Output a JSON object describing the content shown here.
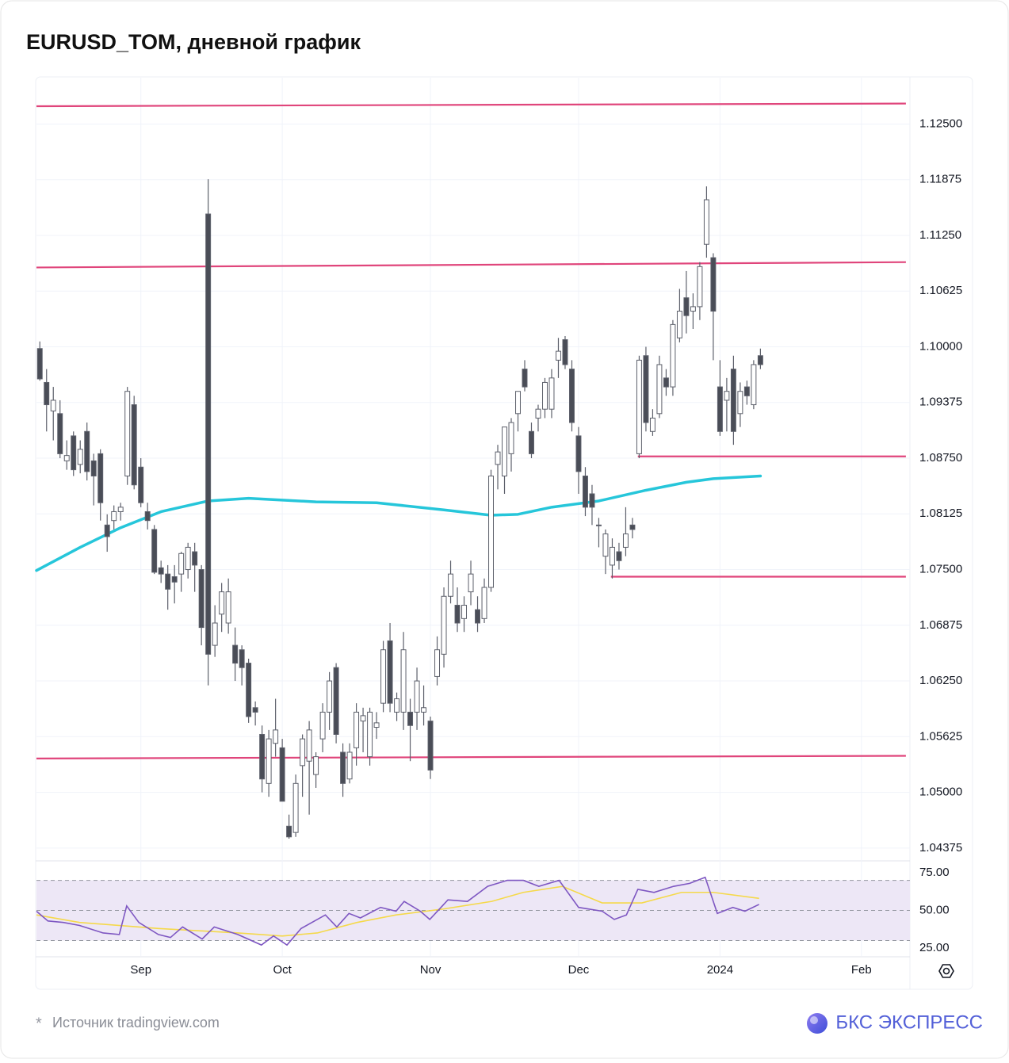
{
  "chart_data": {
    "type": "candlestick",
    "title": "EURUSD_TOM, дневной график",
    "up_color": "#ffffff",
    "down_color": "#4a4d57",
    "wick_color": "#5d606b",
    "grid": true,
    "open": [
      1.0998,
      1.096,
      1.0928,
      1.0925,
      1.0872,
      1.09,
      1.0868,
      1.0905,
      1.0872,
      1.088,
      1.08,
      1.0805,
      1.0815,
      1.0855,
      1.0935,
      1.0865,
      1.0815,
      1.0795,
      1.0752,
      1.0745,
      1.0742,
      1.0745,
      1.075,
      1.077,
      1.075,
      1.1149,
      1.0665,
      1.07,
      1.069,
      1.0665,
      1.066,
      1.0645,
      1.0595,
      1.0565,
      1.051,
      1.0555,
      1.055,
      1.0462,
      1.0455,
      1.053,
      1.0535,
      1.052,
      1.056,
      1.059,
      1.064,
      1.0545,
      1.0515,
      1.055,
      1.058,
      1.054,
      1.0573,
      1.06,
      1.067,
      1.059,
      1.059,
      1.059,
      1.059,
      1.059,
      1.058,
      1.063,
      1.0655,
      1.072,
      1.071,
      1.0695,
      1.0725,
      1.0705,
      1.0695,
      1.073,
      1.0868,
      1.0855,
      1.088,
      1.0925,
      1.0975,
      1.0905,
      1.092,
      1.093,
      1.093,
      1.0985,
      1.1008,
      1.0975,
      1.09,
      1.0855,
      1.0835,
      1.08,
      1.0765,
      1.0755,
      1.077,
      1.0775,
      1.08,
      1.088,
      1.099,
      1.0905,
      1.0925,
      1.0965,
      1.0955,
      1.101,
      1.1055,
      1.104,
      1.1045,
      1.1115,
      1.11,
      1.0955,
      1.094,
      1.0975,
      1.0925,
      1.0955,
      1.0935,
      1.099
    ],
    "high": [
      1.1006,
      1.0975,
      1.0955,
      1.094,
      1.0895,
      1.0905,
      1.0895,
      1.0915,
      1.088,
      1.0885,
      1.0812,
      1.0822,
      1.0825,
      1.0955,
      1.0945,
      1.0875,
      1.0825,
      1.08,
      1.076,
      1.0755,
      1.0755,
      1.077,
      1.078,
      1.078,
      1.0755,
      1.1188,
      1.071,
      1.0735,
      1.074,
      1.0685,
      1.0665,
      1.065,
      1.0602,
      1.0575,
      1.057,
      1.0605,
      1.056,
      1.0475,
      1.052,
      1.0565,
      1.058,
      1.0545,
      1.06,
      1.0635,
      1.0645,
      1.0555,
      1.0555,
      1.06,
      1.0595,
      1.0595,
      1.059,
      1.067,
      1.069,
      1.0612,
      1.068,
      1.0605,
      1.064,
      1.062,
      1.0585,
      1.0675,
      1.073,
      1.076,
      1.073,
      1.072,
      1.076,
      1.072,
      1.074,
      1.0862,
      1.089,
      1.091,
      1.092,
      1.095,
      1.0985,
      1.0915,
      1.0935,
      1.0965,
      1.0975,
      1.101,
      1.1012,
      1.0985,
      1.091,
      1.0865,
      1.0845,
      1.0808,
      1.0795,
      1.0785,
      1.078,
      1.082,
      1.0808,
      1.099,
      1.1,
      1.093,
      1.099,
      1.0975,
      1.103,
      1.1065,
      1.1085,
      1.106,
      1.1095,
      1.118,
      1.1105,
      1.0985,
      1.0965,
      1.099,
      1.096,
      1.0962,
      1.0985,
      1.0998
    ],
    "low": [
      1.0962,
      1.0905,
      1.0895,
      1.0875,
      1.0862,
      1.0855,
      1.0858,
      1.085,
      1.0822,
      1.0805,
      1.077,
      1.0795,
      1.0805,
      1.0845,
      1.084,
      1.082,
      1.0795,
      1.0745,
      1.0735,
      1.0705,
      1.0712,
      1.0725,
      1.074,
      1.0725,
      1.0665,
      1.062,
      1.0652,
      1.068,
      1.0678,
      1.0625,
      1.062,
      1.0578,
      1.0575,
      1.05,
      1.0495,
      1.054,
      1.049,
      1.0448,
      1.045,
      1.0495,
      1.0475,
      1.0505,
      1.0545,
      1.057,
      1.0555,
      1.0495,
      1.051,
      1.053,
      1.0545,
      1.053,
      1.056,
      1.059,
      1.059,
      1.058,
      1.057,
      1.0535,
      1.057,
      1.0575,
      1.0515,
      1.062,
      1.064,
      1.0712,
      1.068,
      1.068,
      1.071,
      1.068,
      1.069,
      1.0725,
      1.084,
      1.0835,
      1.086,
      1.0905,
      1.095,
      1.0875,
      1.0905,
      1.092,
      1.092,
      1.0965,
      1.0975,
      1.0905,
      1.0835,
      1.081,
      1.08,
      1.0775,
      1.0745,
      1.074,
      1.075,
      1.0765,
      1.0785,
      1.0875,
      1.0905,
      1.09,
      1.092,
      1.0945,
      1.0945,
      1.1005,
      1.1015,
      1.102,
      1.103,
      1.11,
      1.0985,
      1.09,
      1.0905,
      1.089,
      1.091,
      1.0935,
      1.093,
      1.0975
    ],
    "close": [
      1.0964,
      1.0935,
      1.094,
      1.088,
      1.0878,
      1.0862,
      1.0885,
      1.086,
      1.0855,
      1.0825,
      1.0787,
      1.0815,
      1.082,
      1.095,
      1.0845,
      1.0825,
      1.0805,
      1.0747,
      1.0745,
      1.0728,
      1.0736,
      1.0768,
      1.0775,
      1.0755,
      1.0685,
      1.0655,
      1.069,
      1.0725,
      1.0725,
      1.0645,
      1.064,
      1.0585,
      1.059,
      1.0515,
      1.056,
      1.057,
      1.049,
      1.045,
      1.051,
      1.056,
      1.057,
      1.054,
      1.059,
      1.0625,
      1.0565,
      1.051,
      1.0545,
      1.059,
      1.0586,
      1.059,
      1.0578,
      1.066,
      1.06,
      1.0605,
      1.066,
      1.0575,
      1.0625,
      1.0595,
      1.0525,
      1.066,
      1.072,
      1.0745,
      1.069,
      1.071,
      1.0745,
      1.069,
      1.073,
      1.0855,
      1.0882,
      1.091,
      1.0915,
      1.095,
      1.0955,
      1.088,
      1.093,
      1.096,
      1.0965,
      1.0995,
      1.098,
      1.0915,
      1.086,
      1.082,
      1.082,
      1.08,
      1.079,
      1.0775,
      1.076,
      1.079,
      1.0795,
      1.0985,
      1.0915,
      1.092,
      1.098,
      1.0955,
      1.1025,
      1.104,
      1.1035,
      1.1045,
      1.109,
      1.1165,
      1.104,
      1.0905,
      1.095,
      1.0905,
      1.095,
      1.0945,
      1.098,
      1.098
    ],
    "xlim": [
      -0.5,
      129.2
    ],
    "xticks": [
      {
        "value": 15,
        "label": "Sep"
      },
      {
        "value": 36,
        "label": "Oct"
      },
      {
        "value": 58,
        "label": "Nov"
      },
      {
        "value": 80,
        "label": "Dec"
      },
      {
        "value": 101,
        "label": "2024"
      },
      {
        "value": 122,
        "label": "Feb"
      }
    ],
    "ylim": [
      1.0424,
      1.1302
    ],
    "yticks": [
      {
        "value": 1.125,
        "label": "1.12500"
      },
      {
        "value": 1.11875,
        "label": "1.11875"
      },
      {
        "value": 1.1125,
        "label": "1.11250"
      },
      {
        "value": 1.10625,
        "label": "1.10625"
      },
      {
        "value": 1.1,
        "label": "1.10000"
      },
      {
        "value": 1.09375,
        "label": "1.09375"
      },
      {
        "value": 1.0875,
        "label": "1.08750"
      },
      {
        "value": 1.08125,
        "label": "1.08125"
      },
      {
        "value": 1.075,
        "label": "1.07500"
      },
      {
        "value": 1.06875,
        "label": "1.06875"
      },
      {
        "value": 1.0625,
        "label": "1.06250"
      },
      {
        "value": 1.05625,
        "label": "1.05625"
      },
      {
        "value": 1.05,
        "label": "1.05000"
      },
      {
        "value": 1.04375,
        "label": "1.04375"
      }
    ],
    "overlays": [
      {
        "color": "#26c6da",
        "x": [
          -0.5,
          6,
          12,
          18,
          25,
          31,
          41,
          50,
          60,
          67,
          71,
          76,
          83,
          90,
          96,
          100,
          107
        ],
        "values": [
          1.0749,
          1.0775,
          1.0797,
          1.0815,
          1.0827,
          1.083,
          1.0826,
          1.0825,
          1.0817,
          1.0811,
          1.0812,
          1.082,
          1.0827,
          1.0839,
          1.0848,
          1.0852,
          1.0855
        ]
      }
    ],
    "levels": [
      {
        "color": "#e0457b",
        "x": [
          -0.5,
          128.6
        ],
        "values": [
          1.127,
          1.1273
        ]
      },
      {
        "color": "#e0457b",
        "x": [
          -0.5,
          128.6
        ],
        "values": [
          1.1089,
          1.1095
        ]
      },
      {
        "color": "#e0457b",
        "x": [
          88.8,
          128.6
        ],
        "values": [
          1.0877,
          1.0877
        ]
      },
      {
        "color": "#e0457b",
        "x": [
          84.8,
          128.6
        ],
        "values": [
          1.0742,
          1.0742
        ]
      },
      {
        "color": "#e0457b",
        "x": [
          -0.5,
          128.6
        ],
        "values": [
          1.0538,
          1.0541
        ]
      }
    ],
    "indicator": {
      "type": "line",
      "ylim": [
        19.7,
        81.9
      ],
      "yticks": [
        {
          "value": 75,
          "label": "75.00"
        },
        {
          "value": 50,
          "label": "50.00"
        },
        {
          "value": 25,
          "label": "25.00"
        }
      ],
      "bands": [
        70,
        50,
        30
      ],
      "band_color": "#ede7f6",
      "series": [
        {
          "color": "#7e57c2",
          "x": [
            -0.5,
            1.2,
            3.5,
            5.9,
            9.4,
            11.8,
            12.9,
            14.7,
            17.6,
            19.4,
            21.2,
            24.1,
            25.9,
            29.4,
            32.9,
            34.7,
            36.7,
            38.8,
            42.4,
            44.1,
            45.9,
            47.6,
            50.6,
            52.9,
            54.1,
            56.5,
            57.9,
            60.6,
            63.5,
            66.5,
            69.4,
            71.8,
            74.1,
            77.1,
            80,
            83.5,
            85.3,
            87.1,
            88.8,
            91.2,
            94.1,
            96.5,
            98.8,
            100.6,
            102.9,
            104.7,
            106.8
          ],
          "values": [
            49.5,
            43,
            42,
            40,
            35,
            34,
            53,
            42,
            34,
            32,
            39,
            31,
            39,
            34,
            27,
            33,
            27,
            38,
            47,
            39,
            48,
            45,
            52,
            49.5,
            56,
            49.5,
            44,
            57,
            56,
            66,
            70,
            70,
            66,
            70,
            52,
            49.5,
            44,
            47,
            64,
            62,
            66,
            68,
            72,
            48,
            52,
            49.5,
            54
          ]
        },
        {
          "color": "#f5d94a",
          "x": [
            -0.5,
            5.9,
            17.6,
            29.4,
            36,
            41.2,
            47.1,
            52.9,
            60,
            67.1,
            71.8,
            77.6,
            83.5,
            89.4,
            95.3,
            100,
            106.8
          ],
          "values": [
            47,
            42,
            38,
            35,
            33,
            35,
            42,
            47,
            51,
            56,
            62,
            66,
            55,
            55,
            62,
            62,
            58
          ]
        }
      ]
    }
  },
  "footer": {
    "mark": "*",
    "source": "Источник tradingview.com",
    "brand": "БКС ЭКСПРЕСС"
  }
}
